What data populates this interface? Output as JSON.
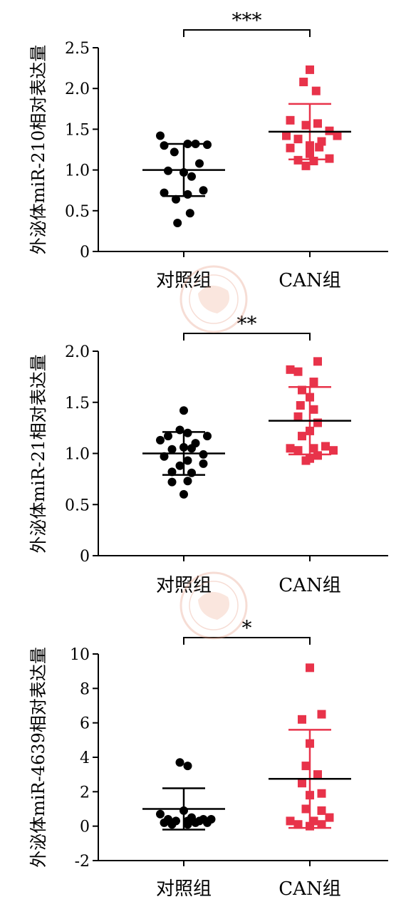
{
  "chart_data": [
    {
      "type": "scatter",
      "ylabel": "外泌体miR-210相对表达量",
      "ylim": [
        0,
        2.5
      ],
      "yticks": [
        "0",
        "0.5",
        "1.0",
        "1.5",
        "2.0",
        "2.5"
      ],
      "ytick_values": [
        0,
        0.5,
        1.0,
        1.5,
        2.0,
        2.5
      ],
      "categories": [
        "对照组",
        "CAN组"
      ],
      "significance": "***",
      "colors": {
        "control": "#000000",
        "can": "#e8334a"
      },
      "series": [
        {
          "category": "对照组",
          "marker": "circle",
          "mean": 1.0,
          "sd_low": 0.68,
          "sd_high": 1.32,
          "points": [
            [
              -0.3,
              1.42
            ],
            [
              -0.25,
              1.3
            ],
            [
              0.05,
              1.32
            ],
            [
              0.3,
              1.31
            ],
            [
              -0.12,
              1.22
            ],
            [
              0.15,
              1.32
            ],
            [
              0.2,
              1.08
            ],
            [
              -0.2,
              0.99
            ],
            [
              0.0,
              0.97
            ],
            [
              0.1,
              0.92
            ],
            [
              0.25,
              0.75
            ],
            [
              -0.25,
              0.72
            ],
            [
              0.05,
              0.7
            ],
            [
              -0.1,
              0.64
            ],
            [
              0.08,
              0.47
            ],
            [
              -0.08,
              0.35
            ]
          ]
        },
        {
          "category": "CAN组",
          "marker": "square",
          "mean": 1.47,
          "sd_low": 1.13,
          "sd_high": 1.81,
          "points": [
            [
              0.0,
              2.23
            ],
            [
              -0.08,
              2.08
            ],
            [
              0.08,
              1.97
            ],
            [
              -0.25,
              1.61
            ],
            [
              0.1,
              1.57
            ],
            [
              -0.05,
              1.55
            ],
            [
              0.25,
              1.48
            ],
            [
              -0.3,
              1.42
            ],
            [
              0.35,
              1.42
            ],
            [
              -0.15,
              1.38
            ],
            [
              0.15,
              1.35
            ],
            [
              0.0,
              1.3
            ],
            [
              -0.25,
              1.27
            ],
            [
              0.12,
              1.28
            ],
            [
              0.0,
              1.2
            ],
            [
              -0.15,
              1.12
            ],
            [
              0.25,
              1.14
            ],
            [
              0.05,
              1.11
            ],
            [
              -0.05,
              1.05
            ]
          ]
        }
      ]
    },
    {
      "type": "scatter",
      "ylabel": "外泌体miR-21相对表达量",
      "ylim": [
        0,
        2.0
      ],
      "yticks": [
        "0",
        "0.5",
        "1.0",
        "1.5",
        "2.0"
      ],
      "ytick_values": [
        0,
        0.5,
        1.0,
        1.5,
        2.0
      ],
      "categories": [
        "对照组",
        "CAN组"
      ],
      "significance": "**",
      "colors": {
        "control": "#000000",
        "can": "#e8334a"
      },
      "series": [
        {
          "category": "对照组",
          "marker": "circle",
          "mean": 1.0,
          "sd_low": 0.79,
          "sd_high": 1.21,
          "points": [
            [
              0.0,
              1.42
            ],
            [
              -0.05,
              1.23
            ],
            [
              -0.2,
              1.17
            ],
            [
              0.05,
              1.2
            ],
            [
              0.3,
              1.17
            ],
            [
              -0.3,
              1.13
            ],
            [
              0.15,
              1.1
            ],
            [
              0.0,
              1.06
            ],
            [
              0.1,
              1.05
            ],
            [
              -0.15,
              1.04
            ],
            [
              0.25,
              0.99
            ],
            [
              -0.25,
              0.97
            ],
            [
              0.05,
              0.93
            ],
            [
              -0.05,
              0.88
            ],
            [
              0.25,
              0.9
            ],
            [
              -0.15,
              0.82
            ],
            [
              0.1,
              0.81
            ],
            [
              0.05,
              0.73
            ],
            [
              -0.15,
              0.72
            ],
            [
              0.0,
              0.6
            ]
          ]
        },
        {
          "category": "CAN组",
          "marker": "square",
          "mean": 1.32,
          "sd_low": 0.99,
          "sd_high": 1.65,
          "points": [
            [
              0.1,
              1.9
            ],
            [
              -0.25,
              1.82
            ],
            [
              -0.15,
              1.8
            ],
            [
              0.05,
              1.7
            ],
            [
              -0.1,
              1.62
            ],
            [
              0.0,
              1.55
            ],
            [
              -0.12,
              1.47
            ],
            [
              0.05,
              1.43
            ],
            [
              -0.15,
              1.36
            ],
            [
              0.1,
              1.3
            ],
            [
              0.0,
              1.22
            ],
            [
              -0.1,
              1.17
            ],
            [
              0.2,
              1.07
            ],
            [
              -0.25,
              1.05
            ],
            [
              0.05,
              1.05
            ],
            [
              0.3,
              1.03
            ],
            [
              -0.15,
              1.03
            ],
            [
              0.1,
              0.98
            ],
            [
              0.0,
              0.95
            ],
            [
              -0.05,
              0.93
            ]
          ]
        }
      ]
    },
    {
      "type": "scatter",
      "ylabel": "外泌体miR-4639相对表达量",
      "ylim": [
        -2,
        10
      ],
      "yticks": [
        "-2",
        "0",
        "2",
        "4",
        "6",
        "8",
        "10"
      ],
      "ytick_values": [
        -2,
        0,
        2,
        4,
        6,
        8,
        10
      ],
      "categories": [
        "对照组",
        "CAN组"
      ],
      "significance": "*",
      "colors": {
        "control": "#000000",
        "can": "#e8334a"
      },
      "series": [
        {
          "category": "对照组",
          "marker": "circle",
          "mean": 1.0,
          "sd_low": -0.2,
          "sd_high": 2.2,
          "points": [
            [
              -0.05,
              3.7
            ],
            [
              0.05,
              3.5
            ],
            [
              -0.3,
              0.7
            ],
            [
              0.0,
              0.9
            ],
            [
              0.1,
              0.5
            ],
            [
              -0.2,
              0.4
            ],
            [
              0.25,
              0.4
            ],
            [
              0.35,
              0.4
            ],
            [
              -0.1,
              0.3
            ],
            [
              0.05,
              0.3
            ],
            [
              0.2,
              0.3
            ],
            [
              -0.25,
              0.2
            ],
            [
              0.15,
              0.2
            ],
            [
              -0.15,
              0.1
            ],
            [
              0.05,
              0.1
            ],
            [
              0.3,
              0.2
            ]
          ]
        },
        {
          "category": "CAN组",
          "marker": "square",
          "mean": 2.75,
          "sd_low": -0.1,
          "sd_high": 5.6,
          "points": [
            [
              0.0,
              9.2
            ],
            [
              0.15,
              6.5
            ],
            [
              -0.1,
              6.2
            ],
            [
              0.0,
              4.8
            ],
            [
              -0.05,
              3.5
            ],
            [
              0.1,
              3.0
            ],
            [
              -0.1,
              2.5
            ],
            [
              0.15,
              1.9
            ],
            [
              0.0,
              1.8
            ],
            [
              -0.05,
              1.0
            ],
            [
              0.15,
              0.9
            ],
            [
              0.25,
              0.5
            ],
            [
              -0.25,
              0.3
            ],
            [
              0.05,
              0.3
            ],
            [
              0.15,
              0.1
            ],
            [
              -0.15,
              0.1
            ],
            [
              0.0,
              0.0
            ]
          ]
        }
      ]
    }
  ]
}
